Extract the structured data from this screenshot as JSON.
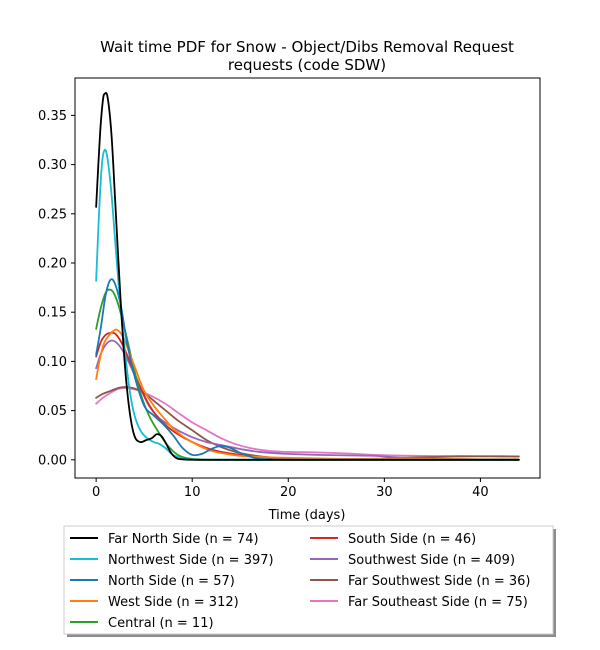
{
  "chart_data": {
    "type": "line",
    "title_lines": [
      "Wait time PDF for Snow - Object/Dibs Removal Request",
      "requests (code SDW)"
    ],
    "xlabel": "Time (days)",
    "ylabel": "",
    "xlim": [
      -2.2,
      46.2
    ],
    "ylim": [
      -0.0185,
      0.388
    ],
    "xticks": [
      0,
      10,
      20,
      30,
      40
    ],
    "yticks": [
      0.0,
      0.05,
      0.1,
      0.15,
      0.2,
      0.25,
      0.3,
      0.35
    ],
    "ytick_labels": [
      "0.00",
      "0.05",
      "0.10",
      "0.15",
      "0.20",
      "0.25",
      "0.30",
      "0.35"
    ],
    "grid": false,
    "legend_placement": "below plot, two columns",
    "series": [
      {
        "name": "Far North Side (n = 74)",
        "color": "#000000",
        "points": [
          [
            0,
            0.257
          ],
          [
            0.4,
            0.33
          ],
          [
            0.7,
            0.365
          ],
          [
            0.9,
            0.372
          ],
          [
            1.2,
            0.368
          ],
          [
            1.6,
            0.33
          ],
          [
            2.0,
            0.26
          ],
          [
            2.5,
            0.17
          ],
          [
            3.0,
            0.095
          ],
          [
            3.5,
            0.048
          ],
          [
            4.0,
            0.024
          ],
          [
            4.6,
            0.018
          ],
          [
            5.2,
            0.02
          ],
          [
            5.8,
            0.022
          ],
          [
            6.3,
            0.026
          ],
          [
            6.8,
            0.024
          ],
          [
            7.3,
            0.016
          ],
          [
            7.8,
            0.007
          ],
          [
            8.3,
            0.002
          ],
          [
            9,
            0.0005
          ],
          [
            11,
            0
          ],
          [
            20,
            0
          ],
          [
            30,
            0
          ],
          [
            44,
            0
          ]
        ]
      },
      {
        "name": "Northwest Side (n = 397)",
        "color": "#17becf",
        "points": [
          [
            0,
            0.182
          ],
          [
            0.3,
            0.25
          ],
          [
            0.6,
            0.3
          ],
          [
            0.9,
            0.315
          ],
          [
            1.2,
            0.305
          ],
          [
            1.6,
            0.27
          ],
          [
            2.0,
            0.22
          ],
          [
            2.5,
            0.16
          ],
          [
            3.0,
            0.11
          ],
          [
            3.5,
            0.07
          ],
          [
            4.0,
            0.045
          ],
          [
            4.6,
            0.03
          ],
          [
            5.3,
            0.022
          ],
          [
            6.0,
            0.018
          ],
          [
            6.6,
            0.016
          ],
          [
            7.2,
            0.012
          ],
          [
            8.0,
            0.005
          ],
          [
            9,
            0.0015
          ],
          [
            10,
            0.0003
          ],
          [
            12,
            0
          ],
          [
            20,
            0
          ],
          [
            30,
            0
          ],
          [
            44,
            0
          ]
        ]
      },
      {
        "name": "North Side (n = 57)",
        "color": "#1f77b4",
        "points": [
          [
            0,
            0.107
          ],
          [
            0.5,
            0.135
          ],
          [
            1.0,
            0.168
          ],
          [
            1.5,
            0.183
          ],
          [
            2.0,
            0.178
          ],
          [
            2.6,
            0.155
          ],
          [
            3.2,
            0.12
          ],
          [
            4.0,
            0.085
          ],
          [
            5.0,
            0.055
          ],
          [
            6.0,
            0.045
          ],
          [
            7.0,
            0.036
          ],
          [
            8.0,
            0.025
          ],
          [
            9.0,
            0.012
          ],
          [
            10.0,
            0.005
          ],
          [
            11.0,
            0.006
          ],
          [
            12.0,
            0.011
          ],
          [
            13.0,
            0.014
          ],
          [
            14.0,
            0.012
          ],
          [
            15.0,
            0.007
          ],
          [
            16.5,
            0.002
          ],
          [
            18,
            0.0005
          ],
          [
            20,
            0
          ],
          [
            30,
            0
          ],
          [
            44,
            0
          ]
        ]
      },
      {
        "name": "West Side (n = 312)",
        "color": "#ff7f0e",
        "points": [
          [
            0,
            0.082
          ],
          [
            0.4,
            0.103
          ],
          [
            0.8,
            0.118
          ],
          [
            1.3,
            0.126
          ],
          [
            1.8,
            0.131
          ],
          [
            2.2,
            0.132
          ],
          [
            2.8,
            0.125
          ],
          [
            3.5,
            0.108
          ],
          [
            4.3,
            0.087
          ],
          [
            5.0,
            0.07
          ],
          [
            6.0,
            0.055
          ],
          [
            7.0,
            0.043
          ],
          [
            8.0,
            0.032
          ],
          [
            9.0,
            0.024
          ],
          [
            10.0,
            0.018
          ],
          [
            11.0,
            0.013
          ],
          [
            12.0,
            0.009
          ],
          [
            13.5,
            0.006
          ],
          [
            15,
            0.004
          ],
          [
            17,
            0.003
          ],
          [
            20,
            0.002
          ],
          [
            25,
            0.001
          ],
          [
            30,
            0.001
          ],
          [
            35,
            0.001
          ],
          [
            40,
            0.0005
          ],
          [
            44,
            0.0005
          ]
        ]
      },
      {
        "name": "Central (n = 11)",
        "color": "#2ca02c",
        "points": [
          [
            0,
            0.133
          ],
          [
            0.5,
            0.155
          ],
          [
            1.0,
            0.17
          ],
          [
            1.4,
            0.173
          ],
          [
            1.8,
            0.17
          ],
          [
            2.3,
            0.158
          ],
          [
            3.0,
            0.132
          ],
          [
            3.8,
            0.098
          ],
          [
            4.6,
            0.068
          ],
          [
            5.5,
            0.045
          ],
          [
            6.5,
            0.028
          ],
          [
            7.5,
            0.014
          ],
          [
            8.5,
            0.005
          ],
          [
            9.5,
            0.0015
          ],
          [
            11,
            0.0003
          ],
          [
            14,
            0
          ],
          [
            20,
            0
          ],
          [
            30,
            0
          ],
          [
            44,
            0
          ]
        ]
      },
      {
        "name": "South Side (n = 46)",
        "color": "#d62728",
        "points": [
          [
            0,
            0.105
          ],
          [
            0.5,
            0.12
          ],
          [
            1.0,
            0.127
          ],
          [
            1.5,
            0.129
          ],
          [
            2.0,
            0.128
          ],
          [
            2.7,
            0.118
          ],
          [
            3.5,
            0.1
          ],
          [
            4.5,
            0.076
          ],
          [
            5.5,
            0.056
          ],
          [
            6.5,
            0.042
          ],
          [
            7.5,
            0.033
          ],
          [
            8.5,
            0.026
          ],
          [
            10.0,
            0.018
          ],
          [
            11.5,
            0.012
          ],
          [
            13.0,
            0.008
          ],
          [
            15,
            0.005
          ],
          [
            17,
            0.003
          ],
          [
            20,
            0.001
          ],
          [
            25,
            0.0005
          ],
          [
            30,
            0.0005
          ],
          [
            44,
            0.0002
          ]
        ]
      },
      {
        "name": "Southwest Side (n = 409)",
        "color": "#9467bd",
        "points": [
          [
            0,
            0.093
          ],
          [
            0.5,
            0.108
          ],
          [
            1.0,
            0.117
          ],
          [
            1.5,
            0.121
          ],
          [
            2.0,
            0.12
          ],
          [
            2.7,
            0.112
          ],
          [
            3.5,
            0.097
          ],
          [
            4.5,
            0.075
          ],
          [
            5.5,
            0.055
          ],
          [
            6.5,
            0.043
          ],
          [
            7.5,
            0.036
          ],
          [
            8.5,
            0.03
          ],
          [
            10.0,
            0.023
          ],
          [
            11.5,
            0.018
          ],
          [
            13.0,
            0.015
          ],
          [
            15,
            0.011
          ],
          [
            17,
            0.008
          ],
          [
            20,
            0.006
          ],
          [
            23,
            0.005
          ],
          [
            26,
            0.0045
          ],
          [
            29,
            0.004
          ],
          [
            32,
            0.002
          ],
          [
            35,
            0.001
          ],
          [
            38,
            0.0005
          ],
          [
            44,
            0.0002
          ]
        ]
      },
      {
        "name": "Far Southwest Side (n = 36)",
        "color": "#8c564b",
        "points": [
          [
            0,
            0.063
          ],
          [
            0.7,
            0.067
          ],
          [
            1.5,
            0.07
          ],
          [
            2.3,
            0.073
          ],
          [
            3.0,
            0.074
          ],
          [
            3.8,
            0.073
          ],
          [
            4.6,
            0.07
          ],
          [
            5.5,
            0.064
          ],
          [
            6.5,
            0.056
          ],
          [
            7.5,
            0.048
          ],
          [
            8.5,
            0.04
          ],
          [
            10.0,
            0.03
          ],
          [
            11.5,
            0.02
          ],
          [
            13.0,
            0.013
          ],
          [
            14.5,
            0.008
          ],
          [
            16,
            0.005
          ],
          [
            18,
            0.0025
          ],
          [
            20,
            0.0015
          ],
          [
            23,
            0.0008
          ],
          [
            26,
            0.0006
          ],
          [
            29,
            0.001
          ],
          [
            32,
            0.002
          ],
          [
            35,
            0.0028
          ],
          [
            38,
            0.0034
          ],
          [
            41,
            0.0035
          ],
          [
            44,
            0.0032
          ]
        ]
      },
      {
        "name": "Far Southeast Side (n = 75)",
        "color": "#e377c2",
        "points": [
          [
            0,
            0.057
          ],
          [
            0.7,
            0.063
          ],
          [
            1.5,
            0.068
          ],
          [
            2.3,
            0.072
          ],
          [
            3.0,
            0.073
          ],
          [
            3.8,
            0.072
          ],
          [
            4.6,
            0.07
          ],
          [
            5.5,
            0.066
          ],
          [
            6.5,
            0.061
          ],
          [
            7.5,
            0.055
          ],
          [
            8.5,
            0.048
          ],
          [
            10.0,
            0.038
          ],
          [
            11.5,
            0.03
          ],
          [
            13.0,
            0.022
          ],
          [
            14.5,
            0.016
          ],
          [
            16,
            0.012
          ],
          [
            18,
            0.009
          ],
          [
            20,
            0.008
          ],
          [
            23,
            0.0075
          ],
          [
            26,
            0.0065
          ],
          [
            29,
            0.005
          ],
          [
            32,
            0.0042
          ],
          [
            35,
            0.0038
          ],
          [
            38,
            0.0038
          ],
          [
            41,
            0.0037
          ],
          [
            44,
            0.0036
          ]
        ]
      }
    ]
  }
}
